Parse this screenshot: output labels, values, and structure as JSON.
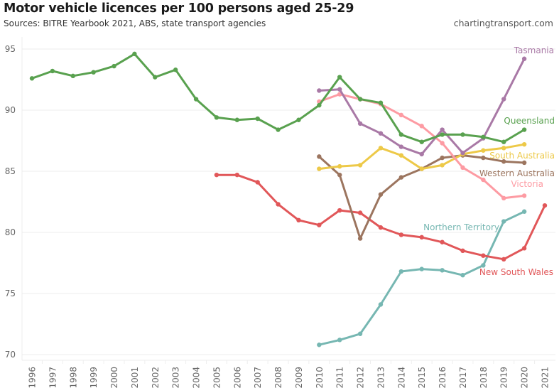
{
  "header": {
    "title": "Motor vehicle licences per 100 persons aged 25-29",
    "subtitle": "Sources: BITRE Yearbook 2021, ABS, state transport agencies",
    "credit": "chartingtransport.com"
  },
  "chart_data": {
    "type": "line",
    "title": "Motor vehicle licences per 100 persons aged 25-29",
    "xlabel": "",
    "ylabel": "",
    "x": [
      1996,
      1997,
      1998,
      1999,
      2000,
      2001,
      2002,
      2003,
      2004,
      2005,
      2006,
      2007,
      2008,
      2009,
      2010,
      2011,
      2012,
      2013,
      2014,
      2015,
      2016,
      2017,
      2018,
      2019,
      2020,
      2021
    ],
    "x_tick_labels": [
      "1996",
      "1997",
      "1998",
      "1999",
      "2000",
      "2001",
      "2002",
      "2003",
      "2004",
      "2005",
      "2006",
      "2007",
      "2008",
      "2009",
      "2010",
      "2011",
      "2012",
      "2013",
      "2014",
      "2015",
      "2016",
      "2017",
      "2018",
      "2019",
      "2020",
      "2021"
    ],
    "ylim": [
      70,
      95
    ],
    "y_ticks": [
      70,
      75,
      80,
      85,
      90,
      95
    ],
    "y_tick_labels": [
      "70",
      "75",
      "80",
      "85",
      "90",
      "95"
    ],
    "grid": true,
    "legend": "direct labels at line ends",
    "series": [
      {
        "name": "Queensland",
        "color": "#59a14f",
        "x": [
          1996,
          1997,
          1998,
          1999,
          2000,
          2001,
          2002,
          2003,
          2004,
          2005,
          2006,
          2007,
          2008,
          2009,
          2010,
          2011,
          2012,
          2013,
          2014,
          2015,
          2016,
          2017,
          2018,
          2019,
          2020
        ],
        "values": [
          92.6,
          93.2,
          92.8,
          93.1,
          93.6,
          94.6,
          92.7,
          93.3,
          90.9,
          89.4,
          89.2,
          89.3,
          88.4,
          89.2,
          90.4,
          92.7,
          90.9,
          90.6,
          88.0,
          87.4,
          88.0,
          88.0,
          87.8,
          87.4,
          88.4
        ]
      },
      {
        "name": "Tasmania",
        "color": "#a979a6",
        "x": [
          2010,
          2011,
          2012,
          2013,
          2014,
          2015,
          2016,
          2017,
          2018,
          2019,
          2020
        ],
        "values": [
          91.6,
          91.7,
          88.9,
          88.1,
          87.0,
          86.4,
          88.4,
          86.5,
          87.7,
          90.9,
          94.2
        ]
      },
      {
        "name": "Victoria",
        "color": "#fd9ba3",
        "x": [
          2010,
          2011,
          2012,
          2013,
          2014,
          2015,
          2016,
          2017,
          2018,
          2019,
          2020
        ],
        "values": [
          90.7,
          91.3,
          90.9,
          90.5,
          89.6,
          88.7,
          87.3,
          85.3,
          84.3,
          82.8,
          83.0
        ]
      },
      {
        "name": "South Australia",
        "color": "#edc948",
        "x": [
          2010,
          2011,
          2012,
          2013,
          2014,
          2015,
          2016,
          2017,
          2018,
          2019,
          2020
        ],
        "values": [
          85.2,
          85.4,
          85.5,
          86.9,
          86.3,
          85.2,
          85.5,
          86.4,
          86.7,
          86.9,
          87.2
        ]
      },
      {
        "name": "Western Australia",
        "color": "#9c755f",
        "x": [
          2010,
          2011,
          2012,
          2013,
          2014,
          2015,
          2016,
          2017,
          2018,
          2019,
          2020
        ],
        "values": [
          86.2,
          84.7,
          79.5,
          83.1,
          84.5,
          85.2,
          86.1,
          86.3,
          86.1,
          85.8,
          85.7
        ]
      },
      {
        "name": "New South Wales",
        "color": "#e15759",
        "x": [
          2005,
          2006,
          2007,
          2008,
          2009,
          2010,
          2011,
          2012,
          2013,
          2014,
          2015,
          2016,
          2017,
          2018,
          2019,
          2020,
          2021
        ],
        "values": [
          84.7,
          84.7,
          84.1,
          82.3,
          81.0,
          80.6,
          81.8,
          81.6,
          80.4,
          79.8,
          79.6,
          79.2,
          78.5,
          78.1,
          77.8,
          78.7,
          82.2
        ]
      },
      {
        "name": "Northern Territory",
        "color": "#76b7b2",
        "x": [
          2010,
          2011,
          2012,
          2013,
          2014,
          2015,
          2016,
          2017,
          2018,
          2019,
          2020
        ],
        "values": [
          70.8,
          71.2,
          71.7,
          74.1,
          76.8,
          77.0,
          76.9,
          76.5,
          77.3,
          80.9,
          81.7
        ]
      }
    ],
    "annotations": [
      {
        "text": "Tasmania",
        "series": "Tasmania"
      },
      {
        "text": "Queensland",
        "series": "Queensland"
      },
      {
        "text": "South Australia",
        "series": "South Australia"
      },
      {
        "text": "Western Australia",
        "series": "Western Australia"
      },
      {
        "text": "Victoria",
        "series": "Victoria"
      },
      {
        "text": "Northern Territory",
        "series": "Northern Territory"
      },
      {
        "text": "New South Wales",
        "series": "New South Wales"
      }
    ]
  }
}
